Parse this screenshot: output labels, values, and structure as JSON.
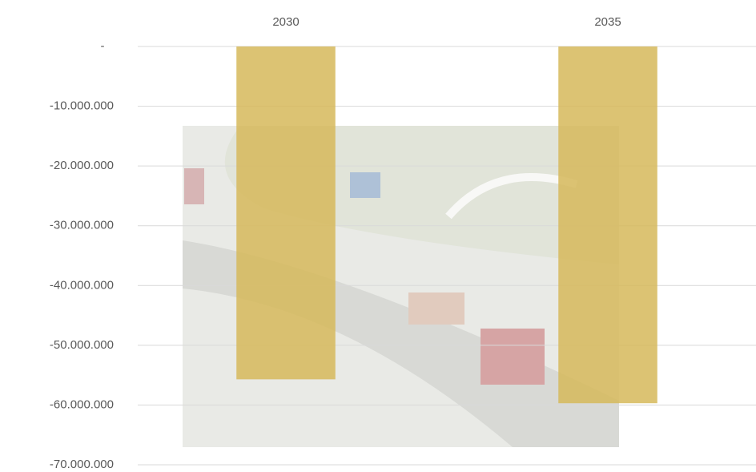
{
  "chart_data": {
    "type": "bar",
    "categories": [
      "2030",
      "2035"
    ],
    "values": [
      -55700000,
      -59700000
    ],
    "color": "#d6b95a",
    "ylim": [
      -70000000,
      0
    ],
    "yticks": [
      {
        "value": 0,
        "label": "-"
      },
      {
        "value": -10000000,
        "label": "-10.000.000"
      },
      {
        "value": -20000000,
        "label": "-20.000.000"
      },
      {
        "value": -30000000,
        "label": "-30.000.000"
      },
      {
        "value": -40000000,
        "label": "-40.000.000"
      },
      {
        "value": -50000000,
        "label": "-50.000.000"
      },
      {
        "value": -60000000,
        "label": "-60.000.000"
      },
      {
        "value": -70000000,
        "label": "-70.000.000"
      }
    ],
    "grid": true
  }
}
